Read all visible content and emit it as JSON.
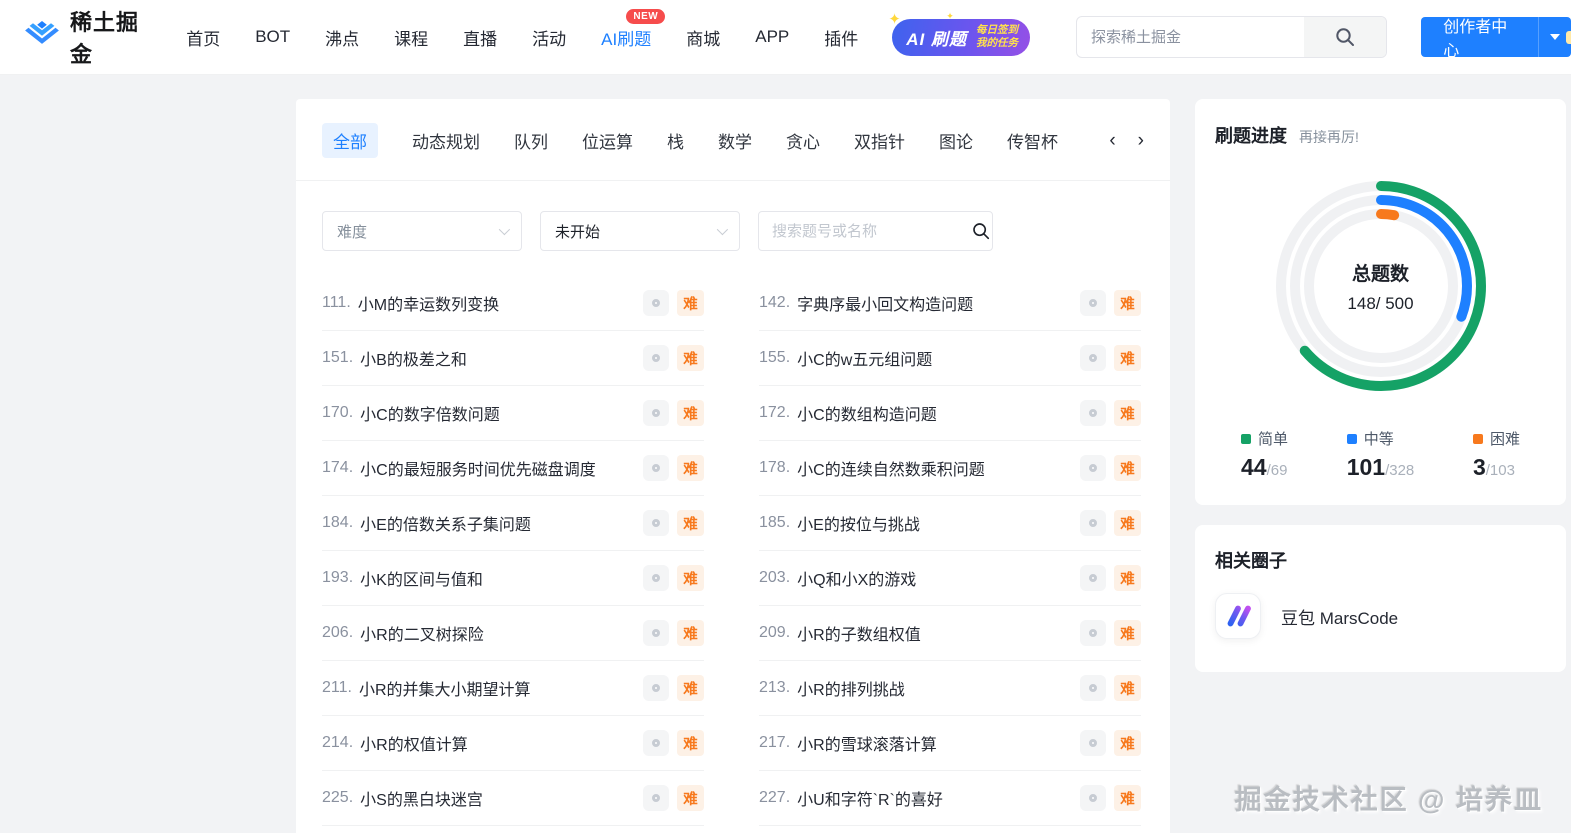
{
  "header": {
    "brand": "稀土掘金",
    "nav": [
      {
        "label": "首页",
        "active": false
      },
      {
        "label": "BOT",
        "active": false
      },
      {
        "label": "沸点",
        "active": false
      },
      {
        "label": "课程",
        "active": false
      },
      {
        "label": "直播",
        "active": false
      },
      {
        "label": "活动",
        "active": false
      },
      {
        "label": "AI刷题",
        "active": true,
        "badge": "NEW"
      },
      {
        "label": "商城",
        "active": false
      },
      {
        "label": "APP",
        "active": false
      },
      {
        "label": "插件",
        "active": false
      }
    ],
    "promo": {
      "title": "AI 刷题",
      "line1": "每日签到",
      "line2": "我的任务",
      "spark": "✦"
    },
    "search": {
      "placeholder": "探索稀土掘金"
    },
    "creator_button": "创作者中心"
  },
  "main": {
    "tabs": [
      {
        "label": "全部",
        "active": true
      },
      {
        "label": "动态规划",
        "active": false
      },
      {
        "label": "队列",
        "active": false
      },
      {
        "label": "位运算",
        "active": false
      },
      {
        "label": "栈",
        "active": false
      },
      {
        "label": "数学",
        "active": false
      },
      {
        "label": "贪心",
        "active": false
      },
      {
        "label": "双指针",
        "active": false
      },
      {
        "label": "图论",
        "active": false
      },
      {
        "label": "传智杯",
        "active": false
      }
    ],
    "pager": {
      "prev": "‹",
      "next": "›"
    },
    "filters": {
      "difficulty_placeholder": "难度",
      "status_value": "未开始",
      "search_placeholder": "搜索题号或名称"
    },
    "difficulty_badge": "难",
    "problems": {
      "left": [
        {
          "num": "111.",
          "title": "小M的幸运数列变换"
        },
        {
          "num": "151.",
          "title": "小B的极差之和"
        },
        {
          "num": "170.",
          "title": "小C的数字倍数问题"
        },
        {
          "num": "174.",
          "title": "小C的最短服务时间优先磁盘调度"
        },
        {
          "num": "184.",
          "title": "小E的倍数关系子集问题"
        },
        {
          "num": "193.",
          "title": "小K的区间与值和"
        },
        {
          "num": "206.",
          "title": "小R的二叉树探险"
        },
        {
          "num": "211.",
          "title": "小R的并集大小期望计算"
        },
        {
          "num": "214.",
          "title": "小R的权值计算"
        },
        {
          "num": "225.",
          "title": "小S的黑白块迷宫"
        }
      ],
      "right": [
        {
          "num": "142.",
          "title": "字典序最小回文构造问题"
        },
        {
          "num": "155.",
          "title": "小C的w五元组问题"
        },
        {
          "num": "172.",
          "title": "小C的数组构造问题"
        },
        {
          "num": "178.",
          "title": "小C的连续自然数乘积问题"
        },
        {
          "num": "185.",
          "title": "小E的按位与挑战"
        },
        {
          "num": "203.",
          "title": "小Q和小X的游戏"
        },
        {
          "num": "209.",
          "title": "小R的子数组权值"
        },
        {
          "num": "213.",
          "title": "小R的排列挑战"
        },
        {
          "num": "217.",
          "title": "小R的雪球滚落计算"
        },
        {
          "num": "227.",
          "title": "小U和字符`R`的喜好"
        }
      ]
    }
  },
  "sidebar": {
    "progress": {
      "title": "刷题进度",
      "subtitle": "再接再厉!"
    },
    "chart_data": {
      "type": "ring",
      "center_label": "总题数",
      "center_value": "148/ 500",
      "series": [
        {
          "name": "简单",
          "value": 44,
          "total": 69,
          "color": "#15a266"
        },
        {
          "name": "中等",
          "value": 101,
          "total": 328,
          "color": "#1e80ff"
        },
        {
          "name": "困难",
          "value": 3,
          "total": 103,
          "color": "#f7791d"
        }
      ],
      "track_color": "#f0f1f3"
    },
    "circles": {
      "title": "相关圈子",
      "items": [
        {
          "name": "豆包 MarsCode"
        }
      ]
    }
  },
  "watermark": "掘金技术社区 @ 培养皿",
  "colors": {
    "brand_blue": "#1e80ff",
    "easy_green": "#15a266",
    "medium_blue": "#1e80ff",
    "hard_orange": "#f7791d"
  }
}
